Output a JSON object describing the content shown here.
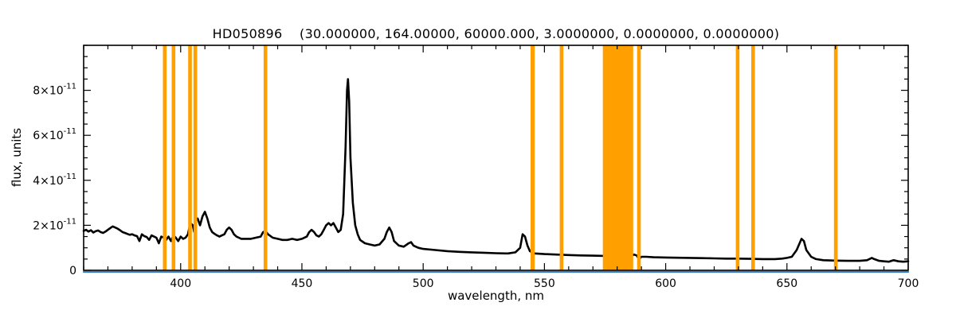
{
  "chart_data": {
    "type": "line",
    "title": "HD050896    (30.000000, 164.00000, 60000.000, 3.0000000, 0.0000000, 0.0000000)",
    "xlabel": "wavelength, nm",
    "ylabel": "flux, units",
    "xlim": [
      360,
      700
    ],
    "ylim": [
      0,
      10
    ],
    "y_unit": "1e-11",
    "grid": false,
    "legend": "none",
    "frame_color": "#000000",
    "background": "#ffffff",
    "x_ticks": [
      {
        "v": 400,
        "label": "400"
      },
      {
        "v": 450,
        "label": "450"
      },
      {
        "v": 500,
        "label": "500"
      },
      {
        "v": 550,
        "label": "550"
      },
      {
        "v": 600,
        "label": "600"
      },
      {
        "v": 650,
        "label": "650"
      },
      {
        "v": 700,
        "label": "700"
      }
    ],
    "x_minor_step": 10,
    "y_ticks": [
      {
        "v": 0,
        "label": "0"
      },
      {
        "v": 2,
        "label": "2×10^-11"
      },
      {
        "v": 4,
        "label": "4×10^-11"
      },
      {
        "v": 6,
        "label": "6×10^-11"
      },
      {
        "v": 8,
        "label": "8×10^-11"
      }
    ],
    "y_minor_step": 0.5,
    "mask_bands": {
      "color": "#FFA000",
      "ranges": [
        [
          392.7,
          394.2
        ],
        [
          396.3,
          397.8
        ],
        [
          403.1,
          404.6
        ],
        [
          405.3,
          406.8
        ],
        [
          434.2,
          435.7
        ],
        [
          544.3,
          546.0
        ],
        [
          556.3,
          557.8
        ],
        [
          574.1,
          586.6
        ],
        [
          588.2,
          589.7
        ],
        [
          628.9,
          630.4
        ],
        [
          635.3,
          636.8
        ],
        [
          669.4,
          670.9
        ]
      ]
    },
    "series": [
      {
        "name": "spectrum",
        "color": "#000000",
        "width": 2.6,
        "points": [
          [
            360,
            1.75
          ],
          [
            361,
            1.8
          ],
          [
            362,
            1.72
          ],
          [
            363,
            1.78
          ],
          [
            364,
            1.68
          ],
          [
            365,
            1.74
          ],
          [
            366,
            1.77
          ],
          [
            367,
            1.7
          ],
          [
            368,
            1.66
          ],
          [
            369,
            1.72
          ],
          [
            370,
            1.8
          ],
          [
            371,
            1.88
          ],
          [
            372,
            1.95
          ],
          [
            373,
            1.9
          ],
          [
            374,
            1.85
          ],
          [
            375,
            1.78
          ],
          [
            376,
            1.7
          ],
          [
            377,
            1.66
          ],
          [
            378,
            1.62
          ],
          [
            379,
            1.58
          ],
          [
            380,
            1.6
          ],
          [
            381,
            1.55
          ],
          [
            382,
            1.52
          ],
          [
            383,
            1.3
          ],
          [
            384,
            1.6
          ],
          [
            385,
            1.52
          ],
          [
            386,
            1.48
          ],
          [
            387,
            1.35
          ],
          [
            388,
            1.55
          ],
          [
            389,
            1.5
          ],
          [
            390,
            1.45
          ],
          [
            391,
            1.2
          ],
          [
            392,
            1.5
          ],
          [
            393,
            1.45
          ],
          [
            394,
            1.35
          ],
          [
            395,
            1.5
          ],
          [
            396,
            1.3
          ],
          [
            397,
            1.55
          ],
          [
            398,
            1.45
          ],
          [
            399,
            1.3
          ],
          [
            400,
            1.5
          ],
          [
            401,
            1.4
          ],
          [
            402,
            1.45
          ],
          [
            403,
            1.6
          ],
          [
            404,
            2.1
          ],
          [
            405,
            2.0
          ],
          [
            405.6,
            1.7
          ],
          [
            406,
            2.2
          ],
          [
            407,
            2.3
          ],
          [
            408,
            2.0
          ],
          [
            409,
            2.4
          ],
          [
            410,
            2.6
          ],
          [
            411,
            2.3
          ],
          [
            412,
            1.9
          ],
          [
            413,
            1.7
          ],
          [
            414,
            1.62
          ],
          [
            415,
            1.55
          ],
          [
            416,
            1.5
          ],
          [
            417,
            1.55
          ],
          [
            418,
            1.6
          ],
          [
            419,
            1.8
          ],
          [
            420,
            1.9
          ],
          [
            421,
            1.8
          ],
          [
            422,
            1.6
          ],
          [
            423,
            1.5
          ],
          [
            424,
            1.45
          ],
          [
            425,
            1.4
          ],
          [
            427,
            1.4
          ],
          [
            429,
            1.4
          ],
          [
            431,
            1.45
          ],
          [
            433,
            1.5
          ],
          [
            434,
            1.7
          ],
          [
            435,
            1.75
          ],
          [
            436,
            1.6
          ],
          [
            438,
            1.45
          ],
          [
            440,
            1.4
          ],
          [
            442,
            1.35
          ],
          [
            444,
            1.35
          ],
          [
            446,
            1.4
          ],
          [
            448,
            1.35
          ],
          [
            450,
            1.4
          ],
          [
            452,
            1.5
          ],
          [
            453,
            1.7
          ],
          [
            454,
            1.8
          ],
          [
            455,
            1.7
          ],
          [
            456,
            1.55
          ],
          [
            457,
            1.5
          ],
          [
            458,
            1.6
          ],
          [
            459,
            1.8
          ],
          [
            460,
            2.0
          ],
          [
            461,
            2.1
          ],
          [
            462,
            2.0
          ],
          [
            463,
            2.1
          ],
          [
            464,
            1.9
          ],
          [
            465,
            1.7
          ],
          [
            466,
            1.8
          ],
          [
            467,
            2.5
          ],
          [
            468,
            5.5
          ],
          [
            468.6,
            8.0
          ],
          [
            469,
            8.5
          ],
          [
            469.5,
            7.5
          ],
          [
            470,
            5.0
          ],
          [
            471,
            3.0
          ],
          [
            472,
            2.0
          ],
          [
            473,
            1.6
          ],
          [
            474,
            1.35
          ],
          [
            476,
            1.2
          ],
          [
            478,
            1.15
          ],
          [
            480,
            1.1
          ],
          [
            482,
            1.15
          ],
          [
            484,
            1.4
          ],
          [
            485,
            1.7
          ],
          [
            486,
            1.9
          ],
          [
            487,
            1.7
          ],
          [
            488,
            1.3
          ],
          [
            490,
            1.1
          ],
          [
            492,
            1.05
          ],
          [
            494,
            1.2
          ],
          [
            495,
            1.25
          ],
          [
            496,
            1.1
          ],
          [
            498,
            1.0
          ],
          [
            500,
            0.95
          ],
          [
            505,
            0.9
          ],
          [
            510,
            0.85
          ],
          [
            515,
            0.82
          ],
          [
            520,
            0.8
          ],
          [
            525,
            0.78
          ],
          [
            530,
            0.76
          ],
          [
            535,
            0.75
          ],
          [
            538,
            0.8
          ],
          [
            540,
            1.0
          ],
          [
            541,
            1.6
          ],
          [
            542,
            1.5
          ],
          [
            543,
            1.1
          ],
          [
            544,
            0.85
          ],
          [
            546,
            0.75
          ],
          [
            550,
            0.72
          ],
          [
            555,
            0.7
          ],
          [
            560,
            0.68
          ],
          [
            565,
            0.66
          ],
          [
            570,
            0.65
          ],
          [
            575,
            0.64
          ],
          [
            580,
            0.63
          ],
          [
            585,
            0.62
          ],
          [
            587,
            0.7
          ],
          [
            588,
            0.66
          ],
          [
            589,
            0.5
          ],
          [
            590,
            0.6
          ],
          [
            592,
            0.6
          ],
          [
            595,
            0.58
          ],
          [
            600,
            0.57
          ],
          [
            605,
            0.56
          ],
          [
            610,
            0.55
          ],
          [
            615,
            0.54
          ],
          [
            620,
            0.53
          ],
          [
            625,
            0.52
          ],
          [
            630,
            0.52
          ],
          [
            635,
            0.51
          ],
          [
            640,
            0.5
          ],
          [
            645,
            0.5
          ],
          [
            648,
            0.52
          ],
          [
            650,
            0.55
          ],
          [
            652,
            0.6
          ],
          [
            654,
            0.9
          ],
          [
            656,
            1.4
          ],
          [
            657,
            1.3
          ],
          [
            658,
            0.9
          ],
          [
            660,
            0.6
          ],
          [
            662,
            0.5
          ],
          [
            665,
            0.45
          ],
          [
            670,
            0.43
          ],
          [
            675,
            0.42
          ],
          [
            680,
            0.42
          ],
          [
            683,
            0.45
          ],
          [
            685,
            0.55
          ],
          [
            686,
            0.5
          ],
          [
            688,
            0.42
          ],
          [
            690,
            0.4
          ],
          [
            692,
            0.38
          ],
          [
            694,
            0.45
          ],
          [
            696,
            0.4
          ],
          [
            698,
            0.38
          ],
          [
            700,
            0.4
          ]
        ]
      },
      {
        "name": "zero-line",
        "color": "#3B7BBE",
        "width": 2.2,
        "points": [
          [
            360,
            0
          ],
          [
            700,
            0
          ]
        ]
      }
    ]
  }
}
